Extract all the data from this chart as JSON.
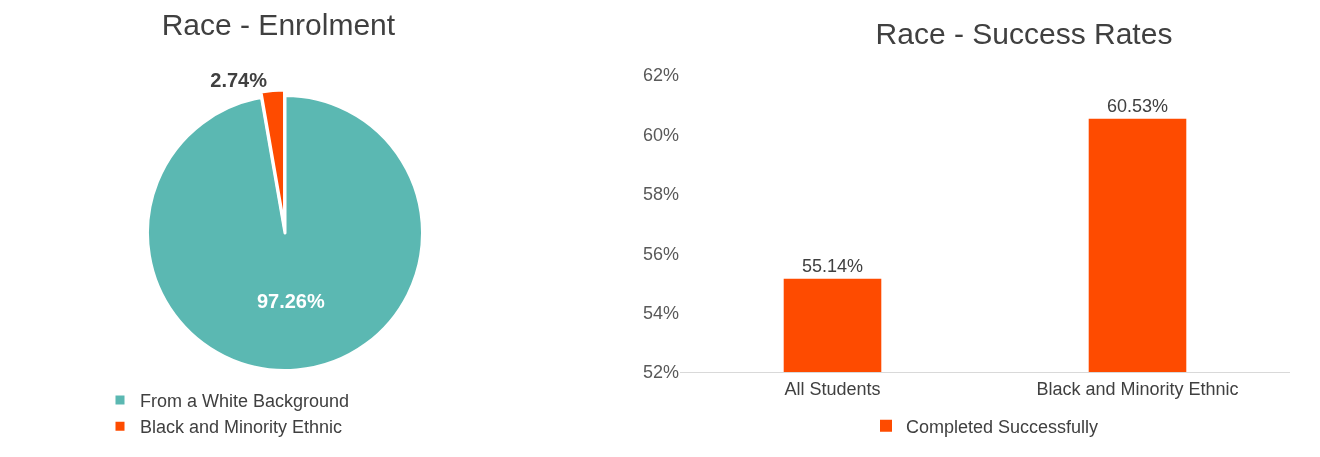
{
  "chart_data": [
    {
      "type": "pie",
      "title": "Race - Enrolment",
      "categories": [
        "From a White Background",
        "Black and Minority Ethnic"
      ],
      "values": [
        97.26,
        2.74
      ],
      "colors": [
        "#5bb8b2",
        "#fe4b00"
      ],
      "value_labels": [
        "97.26%",
        "2.74%"
      ],
      "legend": "bottom"
    },
    {
      "type": "bar",
      "title": "Race - Success Rates",
      "categories": [
        "All Students",
        "Black and Minority Ethnic"
      ],
      "series": [
        {
          "name": "Completed Successfully",
          "color": "#fe4b00",
          "values": [
            55.14,
            60.53
          ],
          "value_labels": [
            "55.14%",
            "60.53%"
          ]
        }
      ],
      "ylim": [
        52,
        62
      ],
      "yticks": [
        {
          "value": 52,
          "label": "52%"
        },
        {
          "value": 54,
          "label": "54%"
        },
        {
          "value": 56,
          "label": "56%"
        },
        {
          "value": 58,
          "label": "58%"
        },
        {
          "value": 60,
          "label": "60%"
        },
        {
          "value": 62,
          "label": "62%"
        }
      ],
      "grid": false,
      "legend": "bottom"
    }
  ]
}
